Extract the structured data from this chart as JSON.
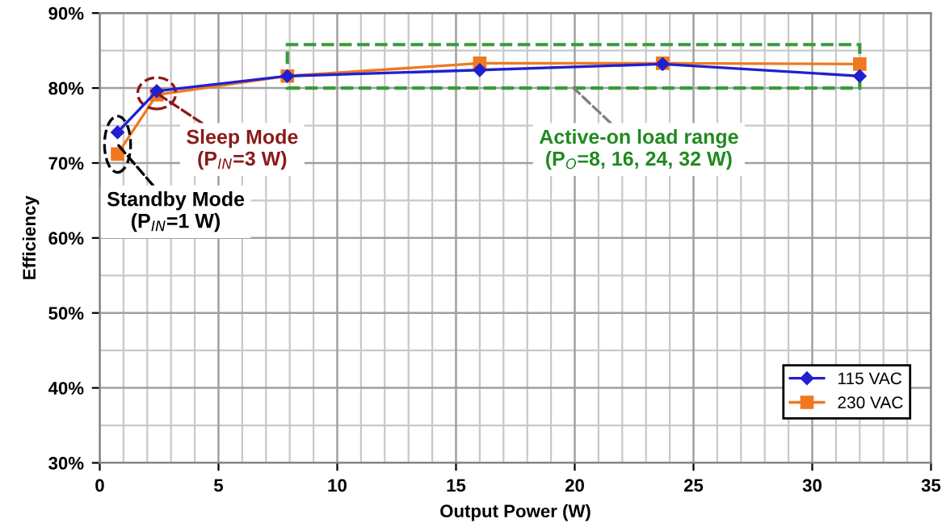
{
  "chart_data": {
    "type": "line",
    "xlabel": "Output Power (W)",
    "ylabel": "Efficiency",
    "x": [
      0.75,
      2.4,
      7.9,
      16,
      23.7,
      32
    ],
    "series": [
      {
        "name": "115 VAC",
        "color": "#2020d0",
        "marker": "diamond",
        "values": [
          74.1,
          79.6,
          81.6,
          82.4,
          83.2,
          81.6
        ]
      },
      {
        "name": "230 VAC",
        "color": "#f07820",
        "marker": "square",
        "values": [
          71.2,
          79.1,
          81.6,
          83.3,
          83.3,
          83.2
        ]
      }
    ],
    "xlim": [
      0,
      35
    ],
    "xticks": [
      0,
      5,
      10,
      15,
      20,
      25,
      30,
      35
    ],
    "ylim": [
      30,
      90
    ],
    "yticks": [
      {
        "value": 30,
        "label": "30%"
      },
      {
        "value": 40,
        "label": "40%"
      },
      {
        "value": 50,
        "label": "50%"
      },
      {
        "value": 60,
        "label": "60%"
      },
      {
        "value": 70,
        "label": "70%"
      },
      {
        "value": 80,
        "label": "80%"
      },
      {
        "value": 90,
        "label": "90%"
      }
    ],
    "grid": true,
    "legend": "bottom right",
    "line_style": "solid",
    "annotations": [
      {
        "text": "Standby Mode\n(P$_{IN}$=1 W)",
        "x": 0.75,
        "y": 72.5
      },
      {
        "text": "Sleep Mode\n(P$_{IN}$=3 W)",
        "x": 2.4,
        "y": 79.3
      },
      "Active-on load range\n(P$_{O}$=8, 16, 24, 32 W)"
    ]
  }
}
